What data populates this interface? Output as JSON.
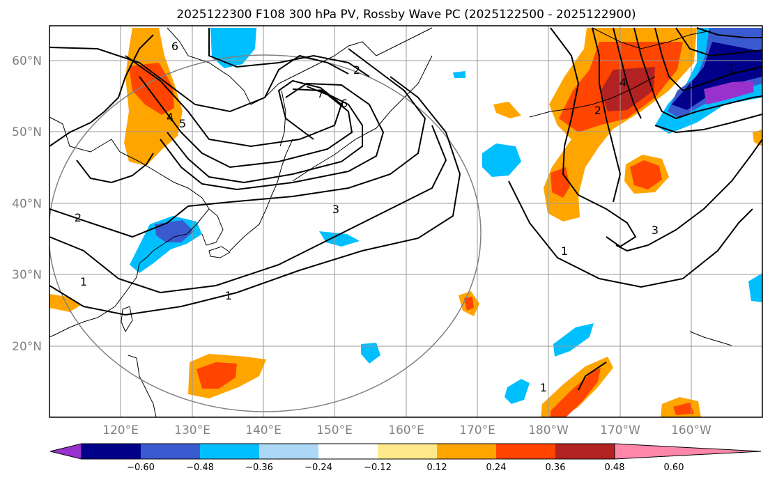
{
  "title": "2025122300 F108 300 hPa PV, Rossby Wave PC (2025122500 - 2025122900)",
  "lat_labels": [
    "60°N",
    "50°N",
    "40°N",
    "30°N",
    "20°N"
  ],
  "lon_labels": [
    "120°E",
    "130°E",
    "140°E",
    "150°E",
    "160°E",
    "170°E",
    "180°W",
    "170°W",
    "160°W"
  ],
  "colorbar": {
    "ticks": [
      "−0.60",
      "−0.48",
      "−0.36",
      "−0.24",
      "−0.12",
      "0.12",
      "0.24",
      "0.36",
      "0.48",
      "0.60"
    ],
    "colors": [
      "#9932cc",
      "#00008b",
      "#3a5bd0",
      "#00bfff",
      "#add8f5",
      "#ffffff",
      "#ffe98a",
      "#ffa500",
      "#ff4500",
      "#b22222",
      "#ff88aa"
    ]
  },
  "contour_labels": [
    "6",
    "2",
    "7",
    "6",
    "5",
    "4",
    "2",
    "3",
    "1",
    "1",
    "1",
    "1",
    "2",
    "3",
    "4",
    "1"
  ],
  "colors": {
    "land_line": "#000000",
    "grid": "#999999",
    "circle": "#808080"
  }
}
